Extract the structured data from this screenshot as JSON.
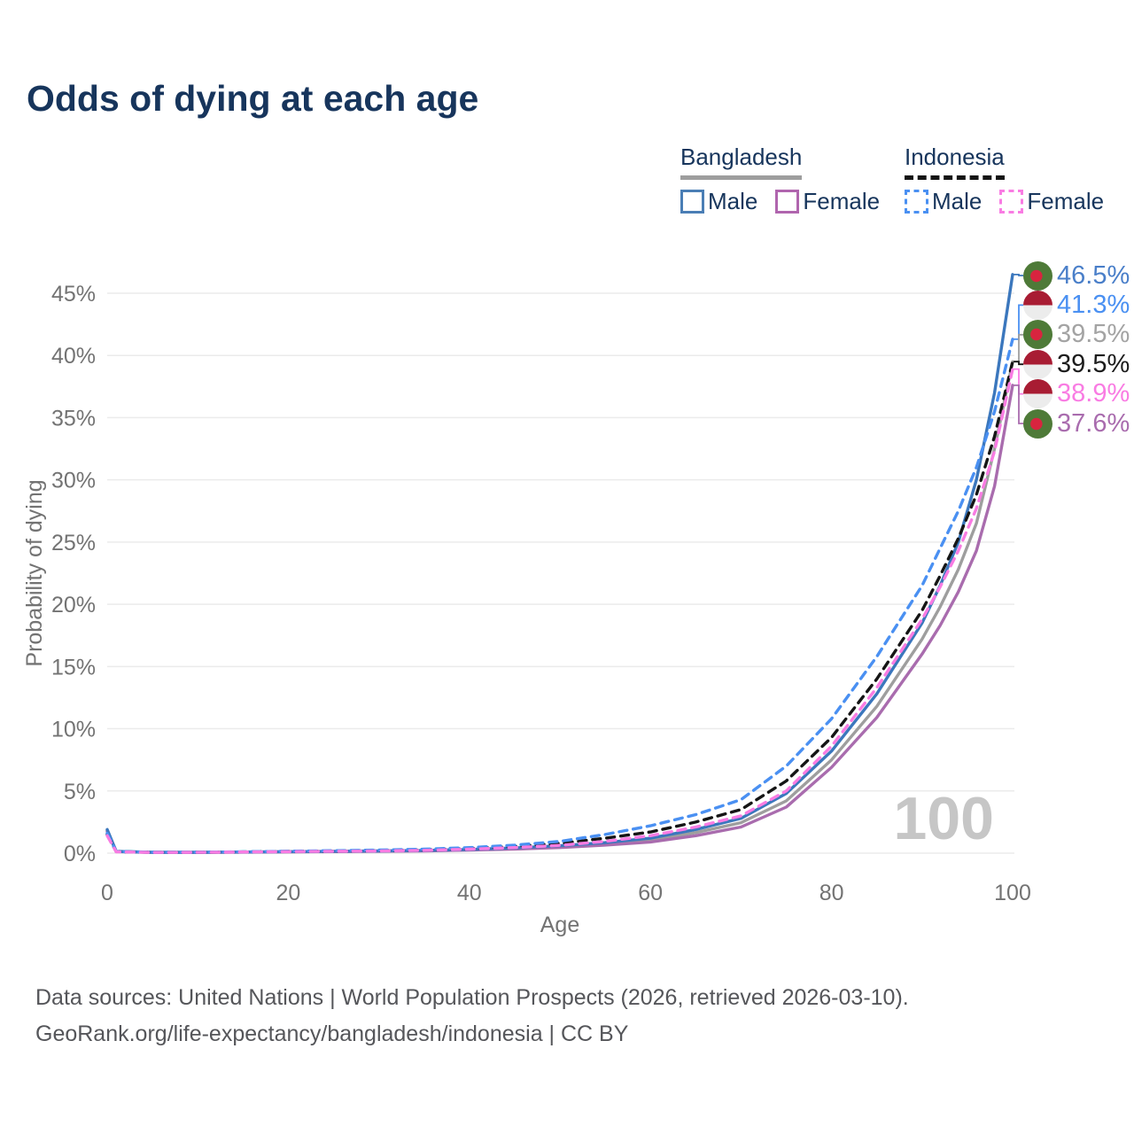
{
  "title": "Odds of dying at each age",
  "legend": {
    "position": "top-right",
    "groups": [
      {
        "label": "Bangladesh",
        "line_style": "solid",
        "underline_color": "#9e9e9e",
        "items": [
          {
            "label": "Male",
            "color": "#4a7eb5",
            "dashed": false
          },
          {
            "label": "Female",
            "color": "#b065ae",
            "dashed": false
          }
        ]
      },
      {
        "label": "Indonesia",
        "line_style": "dashed",
        "underline_color": "#151515",
        "items": [
          {
            "label": "Male",
            "color": "#4a90f2",
            "dashed": true
          },
          {
            "label": "Female",
            "color": "#f97ce3",
            "dashed": true
          }
        ]
      }
    ]
  },
  "chart_data": {
    "type": "line",
    "title": "Odds of dying at each age",
    "xlabel": "Age",
    "ylabel": "Probability of dying",
    "xlim": [
      0,
      100
    ],
    "ylim": [
      0,
      47
    ],
    "grid": "horizontal",
    "watermark": "100",
    "xticks": [
      {
        "value": 0,
        "label": "0"
      },
      {
        "value": 20,
        "label": "20"
      },
      {
        "value": 40,
        "label": "40"
      },
      {
        "value": 60,
        "label": "60"
      },
      {
        "value": 80,
        "label": "80"
      },
      {
        "value": 100,
        "label": "100"
      }
    ],
    "yticks": [
      {
        "value": 0,
        "label": "0%"
      },
      {
        "value": 5,
        "label": "5%"
      },
      {
        "value": 10,
        "label": "10%"
      },
      {
        "value": 15,
        "label": "15%"
      },
      {
        "value": 20,
        "label": "20%"
      },
      {
        "value": 25,
        "label": "25%"
      },
      {
        "value": 30,
        "label": "30%"
      },
      {
        "value": 35,
        "label": "35%"
      },
      {
        "value": 40,
        "label": "40%"
      },
      {
        "value": 45,
        "label": "45%"
      }
    ],
    "series": [
      {
        "key": "bd-all",
        "name": "Bangladesh (both sexes)",
        "country": "Bangladesh",
        "color": "#9e9e9e",
        "dashed": false,
        "points": [
          [
            0,
            1.82
          ],
          [
            1,
            0.13
          ],
          [
            5,
            0.065
          ],
          [
            10,
            0.065
          ],
          [
            15,
            0.085
          ],
          [
            20,
            0.11
          ],
          [
            25,
            0.135
          ],
          [
            30,
            0.165
          ],
          [
            35,
            0.2
          ],
          [
            40,
            0.27
          ],
          [
            45,
            0.37
          ],
          [
            50,
            0.52
          ],
          [
            55,
            0.75
          ],
          [
            60,
            1.05
          ],
          [
            65,
            1.65
          ],
          [
            70,
            2.45
          ],
          [
            75,
            4.2
          ],
          [
            80,
            7.5
          ],
          [
            85,
            11.8
          ],
          [
            90,
            17.2
          ],
          [
            92,
            19.8
          ],
          [
            94,
            22.8
          ],
          [
            96,
            26.5
          ],
          [
            98,
            32.5
          ],
          [
            100,
            39.5
          ]
        ]
      },
      {
        "key": "bd-female",
        "name": "Bangladesh Female",
        "country": "Bangladesh",
        "color": "#a96cae",
        "dashed": false,
        "points": [
          [
            0,
            1.75
          ],
          [
            1,
            0.12
          ],
          [
            5,
            0.06
          ],
          [
            10,
            0.06
          ],
          [
            15,
            0.08
          ],
          [
            20,
            0.1
          ],
          [
            25,
            0.12
          ],
          [
            30,
            0.15
          ],
          [
            35,
            0.18
          ],
          [
            40,
            0.24
          ],
          [
            45,
            0.33
          ],
          [
            50,
            0.45
          ],
          [
            55,
            0.65
          ],
          [
            60,
            0.9
          ],
          [
            65,
            1.4
          ],
          [
            70,
            2.1
          ],
          [
            75,
            3.7
          ],
          [
            80,
            6.9
          ],
          [
            85,
            10.9
          ],
          [
            90,
            16.0
          ],
          [
            92,
            18.3
          ],
          [
            94,
            21.0
          ],
          [
            96,
            24.3
          ],
          [
            98,
            29.5
          ],
          [
            100,
            37.6
          ]
        ]
      },
      {
        "key": "bd-male",
        "name": "Bangladesh Male",
        "country": "Bangladesh",
        "color": "#3b77bd",
        "dashed": false,
        "points": [
          [
            0,
            1.9
          ],
          [
            1,
            0.14
          ],
          [
            5,
            0.07
          ],
          [
            10,
            0.07
          ],
          [
            15,
            0.09
          ],
          [
            20,
            0.12
          ],
          [
            25,
            0.15
          ],
          [
            30,
            0.18
          ],
          [
            35,
            0.22
          ],
          [
            40,
            0.3
          ],
          [
            45,
            0.42
          ],
          [
            50,
            0.6
          ],
          [
            55,
            0.85
          ],
          [
            60,
            1.2
          ],
          [
            65,
            1.9
          ],
          [
            70,
            2.8
          ],
          [
            75,
            4.8
          ],
          [
            80,
            8.2
          ],
          [
            85,
            12.8
          ],
          [
            90,
            18.5
          ],
          [
            92,
            21.5
          ],
          [
            94,
            25.0
          ],
          [
            96,
            30.0
          ],
          [
            98,
            37.0
          ],
          [
            100,
            46.5
          ]
        ]
      },
      {
        "key": "id-all",
        "name": "Indonesia (both sexes)",
        "country": "Indonesia",
        "color": "#151515",
        "dashed": true,
        "points": [
          [
            0,
            1.5
          ],
          [
            1,
            0.12
          ],
          [
            5,
            0.065
          ],
          [
            10,
            0.07
          ],
          [
            15,
            0.1
          ],
          [
            20,
            0.14
          ],
          [
            25,
            0.17
          ],
          [
            30,
            0.21
          ],
          [
            35,
            0.27
          ],
          [
            40,
            0.38
          ],
          [
            45,
            0.54
          ],
          [
            50,
            0.78
          ],
          [
            55,
            1.2
          ],
          [
            60,
            1.7
          ],
          [
            65,
            2.5
          ],
          [
            70,
            3.5
          ],
          [
            75,
            5.8
          ],
          [
            80,
            9.3
          ],
          [
            85,
            14.0
          ],
          [
            90,
            19.5
          ],
          [
            92,
            22.3
          ],
          [
            94,
            25.3
          ],
          [
            96,
            28.8
          ],
          [
            98,
            33.5
          ],
          [
            100,
            39.5
          ]
        ]
      },
      {
        "key": "id-male",
        "name": "Indonesia Male",
        "country": "Indonesia",
        "color": "#4a90f2",
        "dashed": true,
        "points": [
          [
            0,
            1.6
          ],
          [
            1,
            0.13
          ],
          [
            5,
            0.07
          ],
          [
            10,
            0.08
          ],
          [
            15,
            0.11
          ],
          [
            20,
            0.16
          ],
          [
            25,
            0.2
          ],
          [
            30,
            0.25
          ],
          [
            35,
            0.32
          ],
          [
            40,
            0.45
          ],
          [
            45,
            0.65
          ],
          [
            50,
            0.95
          ],
          [
            55,
            1.5
          ],
          [
            60,
            2.2
          ],
          [
            65,
            3.1
          ],
          [
            70,
            4.3
          ],
          [
            75,
            7.0
          ],
          [
            80,
            10.8
          ],
          [
            85,
            15.8
          ],
          [
            90,
            21.5
          ],
          [
            92,
            24.5
          ],
          [
            94,
            27.5
          ],
          [
            96,
            31.0
          ],
          [
            98,
            35.5
          ],
          [
            100,
            41.3
          ]
        ]
      },
      {
        "key": "id-female",
        "name": "Indonesia Female",
        "country": "Indonesia",
        "color": "#f97ce3",
        "dashed": true,
        "points": [
          [
            0,
            1.4
          ],
          [
            1,
            0.11
          ],
          [
            5,
            0.06
          ],
          [
            10,
            0.065
          ],
          [
            15,
            0.09
          ],
          [
            20,
            0.12
          ],
          [
            25,
            0.15
          ],
          [
            30,
            0.18
          ],
          [
            35,
            0.23
          ],
          [
            40,
            0.32
          ],
          [
            45,
            0.45
          ],
          [
            50,
            0.63
          ],
          [
            55,
            0.95
          ],
          [
            60,
            1.4
          ],
          [
            65,
            2.1
          ],
          [
            70,
            3.0
          ],
          [
            75,
            5.0
          ],
          [
            80,
            8.6
          ],
          [
            85,
            13.3
          ],
          [
            90,
            18.8
          ],
          [
            92,
            21.4
          ],
          [
            94,
            24.3
          ],
          [
            96,
            27.7
          ],
          [
            98,
            32.3
          ],
          [
            100,
            38.9
          ]
        ]
      }
    ],
    "end_labels": [
      {
        "series": "bd-male",
        "flag": "bangladesh",
        "text": "46.5%",
        "color": "#4a7fc9"
      },
      {
        "series": "id-male",
        "flag": "indonesia",
        "text": "41.3%",
        "color": "#4a90f2"
      },
      {
        "series": "bd-all",
        "flag": "bangladesh",
        "text": "39.5%",
        "color": "#a3a3a3"
      },
      {
        "series": "id-all",
        "flag": "indonesia",
        "text": "39.5%",
        "color": "#1c1c1c"
      },
      {
        "series": "id-female",
        "flag": "indonesia",
        "text": "38.9%",
        "color": "#f97ce3"
      },
      {
        "series": "bd-female",
        "flag": "bangladesh",
        "text": "37.6%",
        "color": "#a96cae"
      }
    ]
  },
  "footer": {
    "line1": "Data sources: United Nations | World Population Prospects (2026, retrieved 2026-03-10).",
    "line2": "GeoRank.org/life-expectancy/bangladesh/indonesia | CC BY"
  },
  "colors": {
    "title": "#17355c",
    "axis_text": "#737373",
    "gridline": "#ebebeb",
    "watermark": "#c6c6c6",
    "footer_text": "#55565a"
  }
}
